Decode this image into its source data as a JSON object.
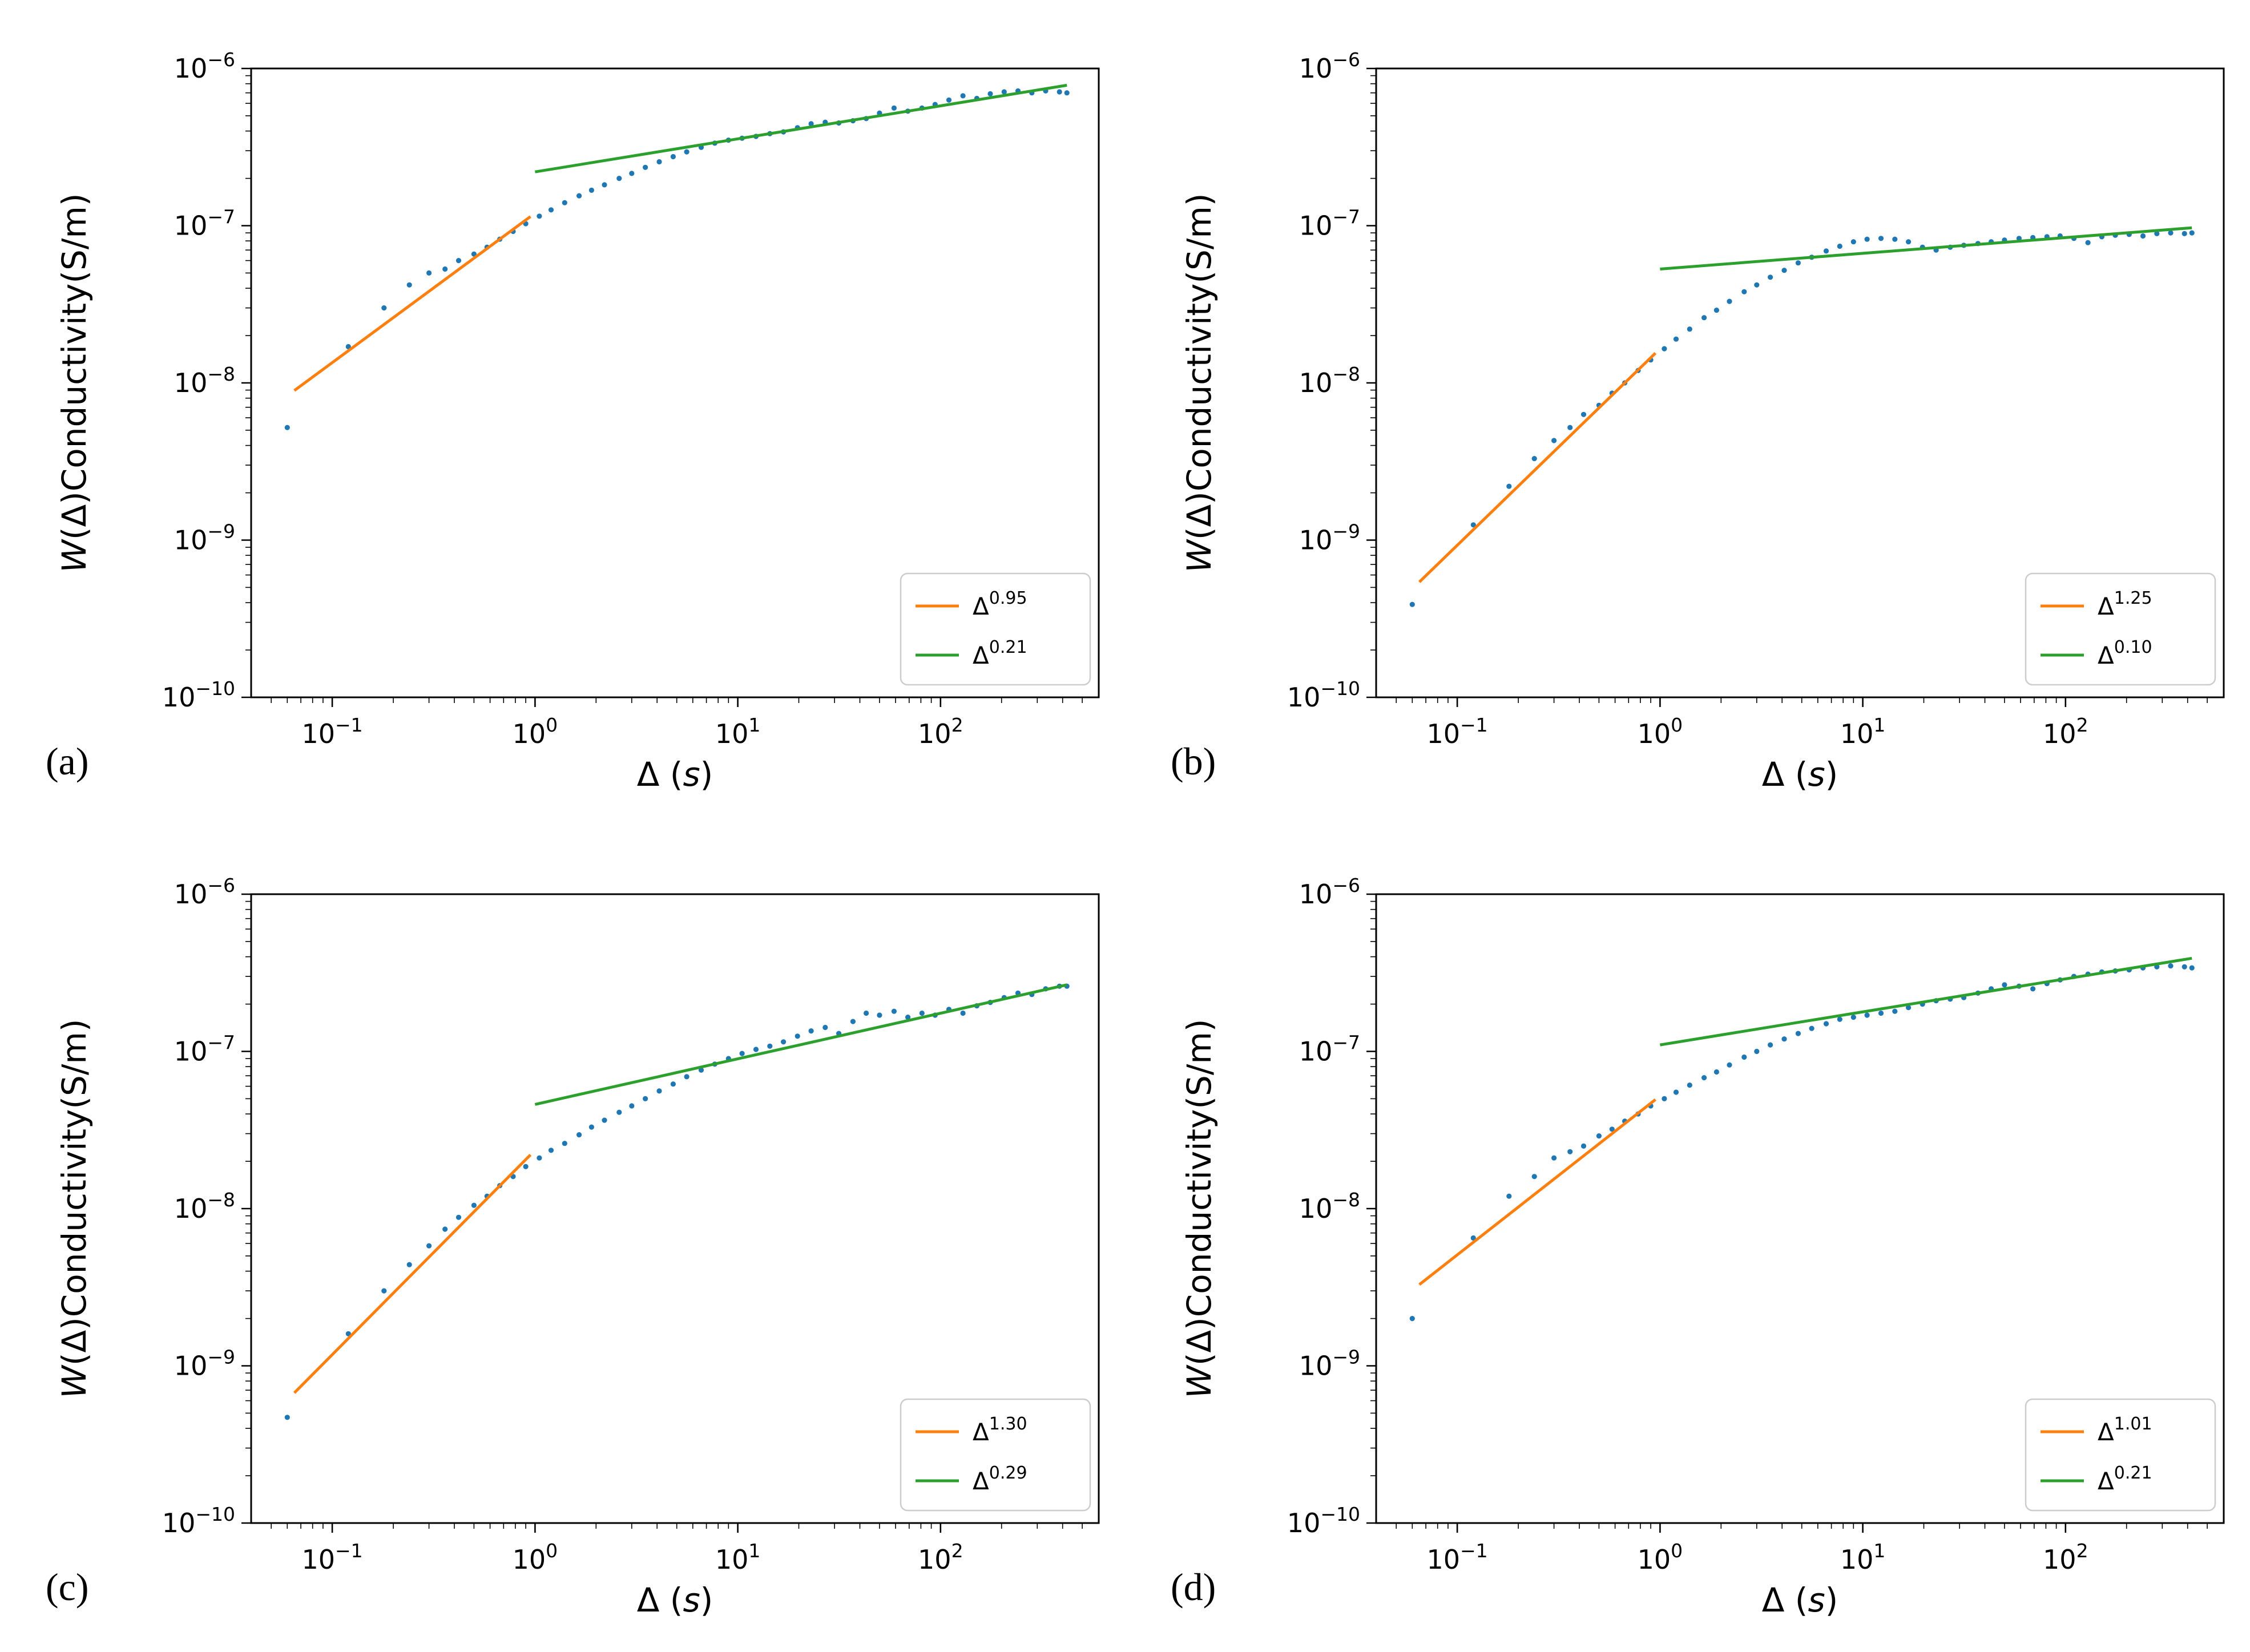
{
  "figure": {
    "background": "#ffffff"
  },
  "tick_base": "10",
  "colors": {
    "scatter": "#1f77b4",
    "fit_small": "#ff7f0e",
    "fit_large": "#2ca02c",
    "legend_border": "#cccccc",
    "axis": "#000000"
  },
  "axis_labels": {
    "x_label_parts": [
      {
        "t": "Δ ("
      },
      {
        "t": "s",
        "i": 1
      },
      {
        "t": ")"
      }
    ],
    "y_label_parts": [
      {
        "t": "W",
        "i": 1
      },
      {
        "t": "(Δ)Conductivity(S/m)"
      }
    ]
  },
  "chart_data": [
    {
      "type": "scatter",
      "panel_label": "(a)",
      "xlabel": "Δ (s)",
      "ylabel": "W(Δ)Conductivity(S/m)",
      "xlim": [
        0.0398,
        603
      ],
      "ylim": [
        1e-10,
        1e-06
      ],
      "x_tick_values": [
        0.1,
        1,
        10,
        100
      ],
      "x_ticks": [
        "−1",
        "0",
        "1",
        "2"
      ],
      "y_tick_values": [
        1e-10,
        1e-09,
        1e-08,
        1e-07,
        1e-06
      ],
      "y_ticks": [
        "−10",
        "−9",
        "−8",
        "−7",
        "−6"
      ],
      "legend": [
        {
          "label": "Δ",
          "sup": "0.95",
          "color": "#ff7f0e"
        },
        {
          "label": "Δ",
          "sup": "0.21",
          "color": "#2ca02c"
        }
      ],
      "fits": [
        {
          "coeff": 1.2e-07,
          "exponent": 0.95,
          "x_range": [
            0.065,
            0.95
          ],
          "color": "#ff7f0e"
        },
        {
          "coeff": 2.2e-07,
          "exponent": 0.21,
          "x_range": [
            1.0,
            420
          ],
          "color": "#2ca02c"
        }
      ],
      "points": [
        [
          0.06,
          5.2e-09
        ],
        [
          0.12,
          1.7e-08
        ],
        [
          0.18,
          3e-08
        ],
        [
          0.24,
          4.2e-08
        ],
        [
          0.3,
          5e-08
        ],
        [
          0.36,
          5.3e-08
        ],
        [
          0.42,
          6e-08
        ],
        [
          0.5,
          6.6e-08
        ],
        [
          0.58,
          7.3e-08
        ],
        [
          0.67,
          8.2e-08
        ],
        [
          0.78,
          9.2e-08
        ],
        [
          0.9,
          1.03e-07
        ],
        [
          1.05,
          1.15e-07
        ],
        [
          1.2,
          1.26e-07
        ],
        [
          1.4,
          1.4e-07
        ],
        [
          1.65,
          1.55e-07
        ],
        [
          1.9,
          1.68e-07
        ],
        [
          2.2,
          1.82e-07
        ],
        [
          2.6,
          2e-07
        ],
        [
          3.0,
          2.15e-07
        ],
        [
          3.5,
          2.35e-07
        ],
        [
          4.1,
          2.55e-07
        ],
        [
          4.8,
          2.75e-07
        ],
        [
          5.6,
          2.95e-07
        ],
        [
          6.6,
          3.15e-07
        ],
        [
          7.7,
          3.35e-07
        ],
        [
          9.0,
          3.5e-07
        ],
        [
          10.5,
          3.6e-07
        ],
        [
          12.3,
          3.7e-07
        ],
        [
          14.4,
          3.85e-07
        ],
        [
          16.8,
          3.95e-07
        ],
        [
          19.7,
          4.2e-07
        ],
        [
          23,
          4.45e-07
        ],
        [
          27,
          4.55e-07
        ],
        [
          31.5,
          4.5e-07
        ],
        [
          37,
          4.65e-07
        ],
        [
          43,
          4.8e-07
        ],
        [
          50,
          5.2e-07
        ],
        [
          59,
          5.6e-07
        ],
        [
          69,
          5.35e-07
        ],
        [
          81,
          5.6e-07
        ],
        [
          94,
          5.9e-07
        ],
        [
          110,
          6.3e-07
        ],
        [
          129,
          6.7e-07
        ],
        [
          151,
          6.45e-07
        ],
        [
          176,
          6.9e-07
        ],
        [
          206,
          7.1e-07
        ],
        [
          241,
          7.2e-07
        ],
        [
          282,
          7e-07
        ],
        [
          330,
          7.2e-07
        ],
        [
          386,
          7.1e-07
        ],
        [
          420,
          7e-07
        ]
      ]
    },
    {
      "type": "scatter",
      "panel_label": "(b)",
      "xlabel": "Δ (s)",
      "ylabel": "W(Δ)Conductivity(S/m)",
      "xlim": [
        0.0398,
        603
      ],
      "ylim": [
        1e-10,
        1e-06
      ],
      "x_tick_values": [
        0.1,
        1,
        10,
        100
      ],
      "x_ticks": [
        "−1",
        "0",
        "1",
        "2"
      ],
      "y_tick_values": [
        1e-10,
        1e-09,
        1e-08,
        1e-07,
        1e-06
      ],
      "y_ticks": [
        "−10",
        "−9",
        "−8",
        "−7",
        "−6"
      ],
      "legend": [
        {
          "label": "Δ",
          "sup": "1.25",
          "color": "#ff7f0e"
        },
        {
          "label": "Δ",
          "sup": "0.10",
          "color": "#2ca02c"
        }
      ],
      "fits": [
        {
          "coeff": 1.65e-08,
          "exponent": 1.25,
          "x_range": [
            0.065,
            0.95
          ],
          "color": "#ff7f0e"
        },
        {
          "coeff": 5.3e-08,
          "exponent": 0.1,
          "x_range": [
            1.0,
            420
          ],
          "color": "#2ca02c"
        }
      ],
      "points": [
        [
          0.06,
          3.9e-10
        ],
        [
          0.12,
          1.25e-09
        ],
        [
          0.18,
          2.2e-09
        ],
        [
          0.24,
          3.3e-09
        ],
        [
          0.3,
          4.3e-09
        ],
        [
          0.36,
          5.2e-09
        ],
        [
          0.42,
          6.3e-09
        ],
        [
          0.5,
          7.2e-09
        ],
        [
          0.58,
          8.6e-09
        ],
        [
          0.67,
          1e-08
        ],
        [
          0.78,
          1.2e-08
        ],
        [
          0.9,
          1.4e-08
        ],
        [
          1.05,
          1.65e-08
        ],
        [
          1.2,
          1.9e-08
        ],
        [
          1.4,
          2.2e-08
        ],
        [
          1.65,
          2.6e-08
        ],
        [
          1.9,
          2.9e-08
        ],
        [
          2.2,
          3.3e-08
        ],
        [
          2.6,
          3.8e-08
        ],
        [
          3.0,
          4.2e-08
        ],
        [
          3.5,
          4.7e-08
        ],
        [
          4.1,
          5.2e-08
        ],
        [
          4.8,
          5.8e-08
        ],
        [
          5.6,
          6.3e-08
        ],
        [
          6.6,
          6.9e-08
        ],
        [
          7.7,
          7.4e-08
        ],
        [
          9.0,
          7.9e-08
        ],
        [
          10.5,
          8.2e-08
        ],
        [
          12.3,
          8.3e-08
        ],
        [
          14.4,
          8.2e-08
        ],
        [
          16.8,
          7.9e-08
        ],
        [
          19.7,
          7.3e-08
        ],
        [
          23,
          7e-08
        ],
        [
          27,
          7.3e-08
        ],
        [
          31.5,
          7.5e-08
        ],
        [
          37,
          7.7e-08
        ],
        [
          43,
          7.9e-08
        ],
        [
          50,
          8.1e-08
        ],
        [
          59,
          8.3e-08
        ],
        [
          69,
          8.4e-08
        ],
        [
          81,
          8.5e-08
        ],
        [
          94,
          8.6e-08
        ],
        [
          110,
          8.3e-08
        ],
        [
          129,
          7.8e-08
        ],
        [
          151,
          8.5e-08
        ],
        [
          176,
          8.7e-08
        ],
        [
          206,
          8.8e-08
        ],
        [
          241,
          8.6e-08
        ],
        [
          282,
          8.9e-08
        ],
        [
          330,
          9e-08
        ],
        [
          386,
          8.9e-08
        ],
        [
          420,
          9e-08
        ]
      ]
    },
    {
      "type": "scatter",
      "panel_label": "(c)",
      "xlabel": "Δ (s)",
      "ylabel": "W(Δ)Conductivity(S/m)",
      "xlim": [
        0.0398,
        603
      ],
      "ylim": [
        1e-10,
        1e-06
      ],
      "x_tick_values": [
        0.1,
        1,
        10,
        100
      ],
      "x_ticks": [
        "−1",
        "0",
        "1",
        "2"
      ],
      "y_tick_values": [
        1e-10,
        1e-09,
        1e-08,
        1e-07,
        1e-06
      ],
      "y_ticks": [
        "−10",
        "−9",
        "−8",
        "−7",
        "−6"
      ],
      "legend": [
        {
          "label": "Δ",
          "sup": "1.30",
          "color": "#ff7f0e"
        },
        {
          "label": "Δ",
          "sup": "0.29",
          "color": "#2ca02c"
        }
      ],
      "fits": [
        {
          "coeff": 2.35e-08,
          "exponent": 1.3,
          "x_range": [
            0.065,
            0.95
          ],
          "color": "#ff7f0e"
        },
        {
          "coeff": 4.6e-08,
          "exponent": 0.29,
          "x_range": [
            1.0,
            420
          ],
          "color": "#2ca02c"
        }
      ],
      "points": [
        [
          0.06,
          4.7e-10
        ],
        [
          0.12,
          1.6e-09
        ],
        [
          0.18,
          3e-09
        ],
        [
          0.24,
          4.4e-09
        ],
        [
          0.3,
          5.8e-09
        ],
        [
          0.36,
          7.4e-09
        ],
        [
          0.42,
          8.8e-09
        ],
        [
          0.5,
          1.05e-08
        ],
        [
          0.58,
          1.2e-08
        ],
        [
          0.67,
          1.4e-08
        ],
        [
          0.78,
          1.6e-08
        ],
        [
          0.9,
          1.85e-08
        ],
        [
          1.05,
          2.1e-08
        ],
        [
          1.2,
          2.35e-08
        ],
        [
          1.4,
          2.6e-08
        ],
        [
          1.65,
          2.95e-08
        ],
        [
          1.9,
          3.3e-08
        ],
        [
          2.2,
          3.65e-08
        ],
        [
          2.6,
          4.1e-08
        ],
        [
          3.0,
          4.5e-08
        ],
        [
          3.5,
          5e-08
        ],
        [
          4.1,
          5.6e-08
        ],
        [
          4.8,
          6.2e-08
        ],
        [
          5.6,
          6.9e-08
        ],
        [
          6.6,
          7.6e-08
        ],
        [
          7.7,
          8.3e-08
        ],
        [
          9.0,
          9e-08
        ],
        [
          10.5,
          9.7e-08
        ],
        [
          12.3,
          1.03e-07
        ],
        [
          14.4,
          1.08e-07
        ],
        [
          16.8,
          1.15e-07
        ],
        [
          19.7,
          1.25e-07
        ],
        [
          23,
          1.35e-07
        ],
        [
          27,
          1.42e-07
        ],
        [
          31.5,
          1.3e-07
        ],
        [
          37,
          1.55e-07
        ],
        [
          43,
          1.75e-07
        ],
        [
          50,
          1.7e-07
        ],
        [
          59,
          1.8e-07
        ],
        [
          69,
          1.65e-07
        ],
        [
          81,
          1.75e-07
        ],
        [
          94,
          1.7e-07
        ],
        [
          110,
          1.85e-07
        ],
        [
          129,
          1.75e-07
        ],
        [
          151,
          1.95e-07
        ],
        [
          176,
          2.05e-07
        ],
        [
          206,
          2.2e-07
        ],
        [
          241,
          2.35e-07
        ],
        [
          282,
          2.3e-07
        ],
        [
          330,
          2.5e-07
        ],
        [
          386,
          2.6e-07
        ],
        [
          420,
          2.6e-07
        ]
      ]
    },
    {
      "type": "scatter",
      "panel_label": "(d)",
      "xlabel": "Δ (s)",
      "ylabel": "W(Δ)Conductivity(S/m)",
      "xlim": [
        0.0398,
        603
      ],
      "ylim": [
        1e-10,
        1e-06
      ],
      "x_tick_values": [
        0.1,
        1,
        10,
        100
      ],
      "x_ticks": [
        "−1",
        "0",
        "1",
        "2"
      ],
      "y_tick_values": [
        1e-10,
        1e-09,
        1e-08,
        1e-07,
        1e-06
      ],
      "y_ticks": [
        "−10",
        "−9",
        "−8",
        "−7",
        "−6"
      ],
      "legend": [
        {
          "label": "Δ",
          "sup": "1.01",
          "color": "#ff7f0e"
        },
        {
          "label": "Δ",
          "sup": "0.21",
          "color": "#2ca02c"
        }
      ],
      "fits": [
        {
          "coeff": 5.2e-08,
          "exponent": 1.01,
          "x_range": [
            0.065,
            0.95
          ],
          "color": "#ff7f0e"
        },
        {
          "coeff": 1.1e-07,
          "exponent": 0.21,
          "x_range": [
            1.0,
            420
          ],
          "color": "#2ca02c"
        }
      ],
      "points": [
        [
          0.06,
          2e-09
        ],
        [
          0.12,
          6.5e-09
        ],
        [
          0.18,
          1.2e-08
        ],
        [
          0.24,
          1.6e-08
        ],
        [
          0.3,
          2.1e-08
        ],
        [
          0.36,
          2.3e-08
        ],
        [
          0.42,
          2.5e-08
        ],
        [
          0.5,
          2.9e-08
        ],
        [
          0.58,
          3.2e-08
        ],
        [
          0.67,
          3.6e-08
        ],
        [
          0.78,
          4e-08
        ],
        [
          0.9,
          4.5e-08
        ],
        [
          1.05,
          5e-08
        ],
        [
          1.2,
          5.5e-08
        ],
        [
          1.4,
          6.1e-08
        ],
        [
          1.65,
          6.8e-08
        ],
        [
          1.9,
          7.4e-08
        ],
        [
          2.2,
          8.2e-08
        ],
        [
          2.6,
          9.2e-08
        ],
        [
          3.0,
          1e-07
        ],
        [
          3.5,
          1.1e-07
        ],
        [
          4.1,
          1.2e-07
        ],
        [
          4.8,
          1.3e-07
        ],
        [
          5.6,
          1.4e-07
        ],
        [
          6.6,
          1.5e-07
        ],
        [
          7.7,
          1.6e-07
        ],
        [
          9.0,
          1.65e-07
        ],
        [
          10.5,
          1.7e-07
        ],
        [
          12.3,
          1.75e-07
        ],
        [
          14.4,
          1.8e-07
        ],
        [
          16.8,
          1.9e-07
        ],
        [
          19.7,
          2e-07
        ],
        [
          23,
          2.1e-07
        ],
        [
          27,
          2.15e-07
        ],
        [
          31.5,
          2.2e-07
        ],
        [
          37,
          2.35e-07
        ],
        [
          43,
          2.5e-07
        ],
        [
          50,
          2.65e-07
        ],
        [
          59,
          2.6e-07
        ],
        [
          69,
          2.5e-07
        ],
        [
          81,
          2.7e-07
        ],
        [
          94,
          2.85e-07
        ],
        [
          110,
          3e-07
        ],
        [
          129,
          3.1e-07
        ],
        [
          151,
          3.2e-07
        ],
        [
          176,
          3.25e-07
        ],
        [
          206,
          3.3e-07
        ],
        [
          241,
          3.4e-07
        ],
        [
          282,
          3.45e-07
        ],
        [
          330,
          3.5e-07
        ],
        [
          386,
          3.45e-07
        ],
        [
          420,
          3.4e-07
        ]
      ]
    }
  ]
}
